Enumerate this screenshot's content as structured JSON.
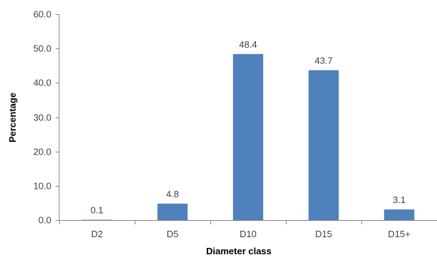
{
  "chart_data": {
    "type": "bar",
    "categories": [
      "D2",
      "D5",
      "D10",
      "D15",
      "D15+"
    ],
    "values": [
      0.1,
      4.8,
      48.4,
      43.7,
      3.1
    ],
    "value_labels": [
      "0.1",
      "4.8",
      "48.4",
      "43.7",
      "3.1"
    ],
    "xlabel": "Diameter class",
    "ylabel": "Percentage",
    "ylim": [
      0,
      60
    ],
    "yticks": [
      0,
      10,
      20,
      30,
      40,
      50,
      60
    ],
    "ytick_labels": [
      "0.0",
      "10.0",
      "20.0",
      "30.0",
      "40.0",
      "50.0",
      "60.0"
    ],
    "grid": false,
    "legend": "none",
    "bar_color": "#4F81BD"
  }
}
